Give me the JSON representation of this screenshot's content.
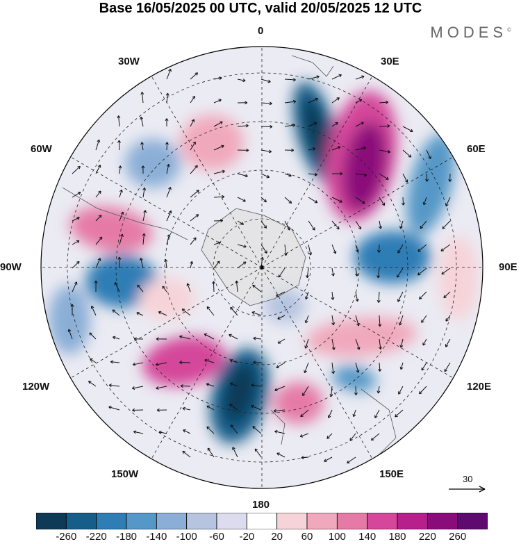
{
  "title": "Base 16/05/2025 00 UTC, valid 20/05/2025 12 UTC",
  "brand": "MODES",
  "brand_mark": "©",
  "map": {
    "projection": "south-polar-stereographic",
    "longitude_labels": {
      "lon_0": "0",
      "lon_30e": "30E",
      "lon_60e": "60E",
      "lon_90e": "90E",
      "lon_120e": "120E",
      "lon_150e": "150E",
      "lon_180": "180",
      "lon_150w": "150W",
      "lon_120w": "120W",
      "lon_90w": "90W",
      "lon_60w": "60W",
      "lon_30w": "30W"
    },
    "reference_vector": "30"
  },
  "colorbar": {
    "levels": [
      "-260",
      "-220",
      "-180",
      "-140",
      "-100",
      "-60",
      "-20",
      "20",
      "60",
      "100",
      "140",
      "180",
      "220",
      "260"
    ],
    "colors": [
      "#0e3a57",
      "#175d8a",
      "#2e7db5",
      "#5597c6",
      "#8aaed6",
      "#b6c4e0",
      "#dcdcee",
      "#ffffff",
      "#f6d3d8",
      "#f0a9bc",
      "#e57aa6",
      "#d4479a",
      "#b71f8d",
      "#8a0c7a",
      "#5e0a6e"
    ]
  },
  "colors": {
    "land": "#e0e0e0",
    "background": "#ffffff"
  }
}
